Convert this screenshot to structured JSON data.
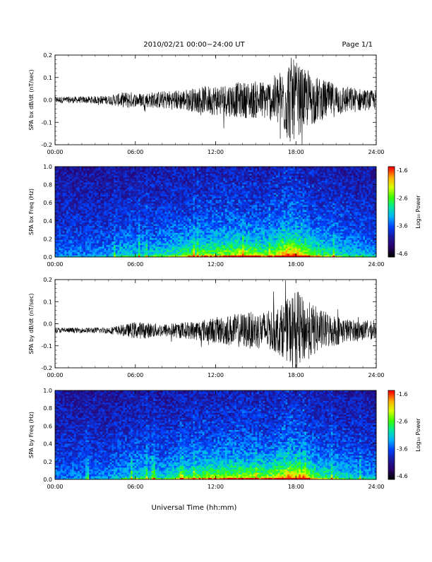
{
  "header": {
    "title": "2010/02/21  00:00−24:00 UT",
    "page": "Page 1/1"
  },
  "footer": {
    "xlabel": "Universal Time (hh:mm)"
  },
  "colors": {
    "line": "#000000",
    "colormap": [
      "#000000",
      "#2b006b",
      "#1a1aa0",
      "#0040ff",
      "#00b0ff",
      "#00e8a0",
      "#3cff00",
      "#d8ff00",
      "#ffb000",
      "#ff0000"
    ]
  },
  "chart_data": [
    {
      "type": "line",
      "ylabel": "SPA bx dB/dt (nT/sec)",
      "xlim": [
        0,
        24
      ],
      "ylim": [
        -0.2,
        0.2
      ],
      "xticks": [
        "00:00",
        "06:00",
        "12:00",
        "18:00",
        "24:00"
      ],
      "yticks": [
        "-0.2",
        "-0.1",
        "0.0",
        "0.1",
        "0.2"
      ],
      "x_hours": [
        0,
        2,
        4,
        5.5,
        6,
        8,
        10,
        12,
        14,
        16,
        17,
        17.5,
        18,
        18.5,
        19,
        20,
        22,
        24
      ],
      "envelope": [
        0.015,
        0.015,
        0.02,
        0.04,
        0.03,
        0.04,
        0.05,
        0.07,
        0.08,
        0.09,
        0.14,
        0.2,
        0.17,
        0.14,
        0.12,
        0.09,
        0.06,
        0.04
      ],
      "baseline": 0.0
    },
    {
      "type": "heatmap",
      "ylabel": "SPA bx Freq (Hz)",
      "xlim": [
        0,
        24
      ],
      "ylim": [
        0,
        1.0
      ],
      "xticks": [
        "00:00",
        "06:00",
        "12:00",
        "18:00",
        "24:00"
      ],
      "yticks": [
        "0.0",
        "0.2",
        "0.4",
        "0.6",
        "0.8",
        "1.0"
      ],
      "colorbar_label": "Log₁₀ Power",
      "colorbar_range": [
        -4.6,
        -1.6
      ],
      "colorbar_ticks": [
        "-1.6",
        "-2.6",
        "-3.6",
        "-4.6"
      ],
      "activity_hours": [
        0,
        2,
        4,
        5.5,
        6,
        8,
        10,
        12,
        14,
        16,
        17,
        17.5,
        18,
        18.5,
        19,
        20,
        22,
        24
      ],
      "activity_level": [
        0.1,
        0.12,
        0.15,
        0.35,
        0.25,
        0.35,
        0.5,
        0.6,
        0.65,
        0.55,
        0.85,
        0.95,
        0.9,
        0.75,
        0.65,
        0.45,
        0.3,
        0.2
      ]
    },
    {
      "type": "line",
      "ylabel": "SPA by dB/dt (nT/sec)",
      "xlim": [
        0,
        24
      ],
      "ylim": [
        -0.2,
        0.2
      ],
      "xticks": [
        "00:00",
        "06:00",
        "12:00",
        "18:00",
        "24:00"
      ],
      "yticks": [
        "-0.2",
        "-0.1",
        "0.0",
        "0.1",
        "0.2"
      ],
      "x_hours": [
        0,
        2,
        4,
        5.5,
        6,
        8,
        10,
        12,
        14,
        16,
        17,
        17.5,
        18,
        18.5,
        19,
        20,
        22,
        24
      ],
      "envelope": [
        0.012,
        0.012,
        0.015,
        0.03,
        0.04,
        0.03,
        0.04,
        0.06,
        0.08,
        0.09,
        0.12,
        0.15,
        0.19,
        0.15,
        0.13,
        0.09,
        0.05,
        0.04
      ],
      "baseline": -0.03
    },
    {
      "type": "heatmap",
      "ylabel": "SPA by Freq (Hz)",
      "xlim": [
        0,
        24
      ],
      "ylim": [
        0,
        1.0
      ],
      "xticks": [
        "00:00",
        "06:00",
        "12:00",
        "18:00",
        "24:00"
      ],
      "yticks": [
        "0.0",
        "0.2",
        "0.4",
        "0.6",
        "0.8",
        "1.0"
      ],
      "colorbar_label": "Log₁₀ Power",
      "colorbar_range": [
        -4.6,
        -1.6
      ],
      "colorbar_ticks": [
        "-1.6",
        "-2.6",
        "-3.6",
        "-4.6"
      ],
      "activity_hours": [
        0,
        2,
        4,
        5.5,
        6,
        8,
        10,
        12,
        14,
        16,
        17,
        17.5,
        18,
        18.5,
        19,
        20,
        22,
        24
      ],
      "activity_level": [
        0.1,
        0.12,
        0.15,
        0.3,
        0.35,
        0.3,
        0.5,
        0.6,
        0.65,
        0.6,
        0.8,
        0.9,
        0.85,
        0.7,
        0.6,
        0.45,
        0.3,
        0.2
      ]
    }
  ]
}
